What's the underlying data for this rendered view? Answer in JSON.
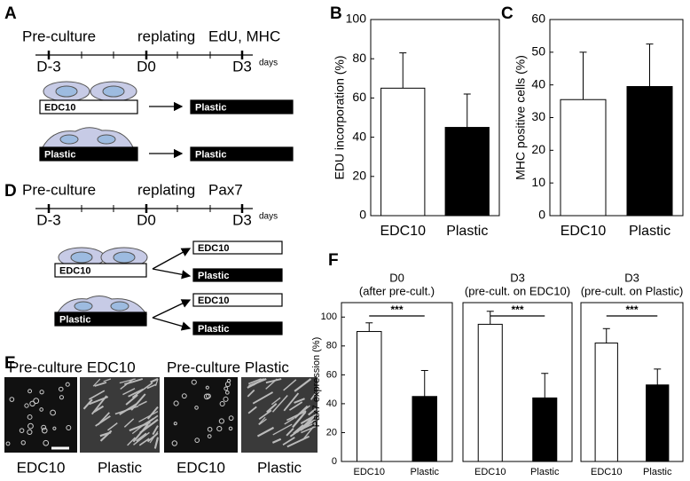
{
  "panel_labels": [
    "A",
    "B",
    "C",
    "D",
    "E",
    "F"
  ],
  "timeline_a": {
    "stages": [
      "Pre-culture",
      "replating",
      "EdU, MHC"
    ],
    "ticks": [
      "D-3",
      "D0",
      "D3"
    ],
    "unit": "days",
    "rows": [
      {
        "source": "EDC10",
        "target": "Plastic"
      },
      {
        "source": "Plastic",
        "target": "Plastic"
      }
    ]
  },
  "timeline_d": {
    "stages": [
      "Pre-culture",
      "replating",
      "Pax7"
    ],
    "ticks": [
      "D-3",
      "D0",
      "D3"
    ],
    "unit": "days",
    "rows": [
      {
        "source": "EDC10",
        "targets": [
          "EDC10",
          "Plastic"
        ]
      },
      {
        "source": "Plastic",
        "targets": [
          "EDC10",
          "Plastic"
        ]
      }
    ]
  },
  "images_e": {
    "headers": [
      "Pre-culture EDC10",
      "Pre-culture Plastic"
    ],
    "labels": [
      "EDC10",
      "Plastic",
      "EDC10",
      "Plastic"
    ]
  },
  "chart_data": [
    {
      "type": "bar",
      "ylabel": "EDU incorporation (%)",
      "categories": [
        "EDC10",
        "Plastic"
      ],
      "values": [
        65,
        45
      ],
      "errors": [
        18,
        17
      ],
      "colors": [
        "#ffffff",
        "#000000"
      ],
      "ylim": [
        0,
        100
      ],
      "yticks": [
        0,
        20,
        40,
        60,
        80,
        100
      ]
    },
    {
      "type": "bar",
      "ylabel": "MHC positive cells (%)",
      "categories": [
        "EDC10",
        "Plastic"
      ],
      "values": [
        35.5,
        39.5
      ],
      "errors": [
        14.5,
        13
      ],
      "colors": [
        "#ffffff",
        "#000000"
      ],
      "ylim": [
        0,
        60
      ],
      "yticks": [
        0,
        10,
        20,
        30,
        40,
        50,
        60
      ]
    },
    {
      "type": "bar",
      "title": "D0",
      "subtitle": "(after pre-cult.)",
      "ylabel": "Pax7 expression (%)",
      "categories": [
        "EDC10",
        "Plastic"
      ],
      "values": [
        90,
        45
      ],
      "errors": [
        6,
        18
      ],
      "colors": [
        "#ffffff",
        "#000000"
      ],
      "ylim": [
        0,
        110
      ],
      "yticks": [
        0,
        20,
        40,
        60,
        80,
        100
      ],
      "annotation": "***"
    },
    {
      "type": "bar",
      "title": "D3",
      "subtitle": "(pre-cult. on EDC10)",
      "categories": [
        "EDC10",
        "Plastic"
      ],
      "values": [
        95,
        44
      ],
      "errors": [
        9,
        17
      ],
      "colors": [
        "#ffffff",
        "#000000"
      ],
      "ylim": [
        0,
        110
      ],
      "annotation": "***"
    },
    {
      "type": "bar",
      "title": "D3",
      "subtitle": "(pre-cult. on Plastic)",
      "categories": [
        "EDC10",
        "Plastic"
      ],
      "values": [
        82,
        53
      ],
      "errors": [
        10,
        11
      ],
      "colors": [
        "#ffffff",
        "#000000"
      ],
      "ylim": [
        0,
        110
      ],
      "annotation": "***"
    }
  ]
}
